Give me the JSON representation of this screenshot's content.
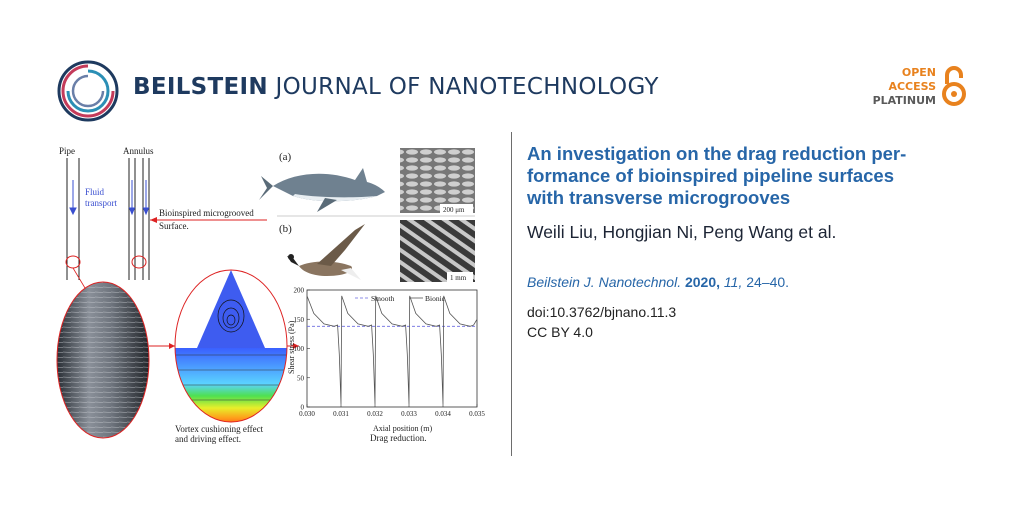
{
  "header": {
    "journal_bold": "BEILSTEIN",
    "journal_rest": " JOURNAL OF NANOTECHNOLOGY",
    "open_access": [
      "OPEN",
      "ACCESS",
      "PLATINUM"
    ]
  },
  "article": {
    "title_lines": [
      "An investigation on the drag reduction per-",
      "formance of bioinspired pipeline surfaces",
      "with transverse microgrooves"
    ],
    "authors": "Weili Liu, Hongjian Ni, Peng Wang et al.",
    "journal_abbr": "Beilstein J. Nanotechnol.",
    "year": "2020,",
    "volume": "11,",
    "pages": "24–40.",
    "doi": "doi:10.3762/bjnano.11.3",
    "license": "CC BY 4.0"
  },
  "figure": {
    "labels": {
      "pipe": "Pipe",
      "annulus": "Annulus",
      "fluid": "Fluid",
      "transport": "transport",
      "panel_a": "(a)",
      "panel_b": "(b)",
      "scale_a": "200 μm",
      "scale_b": "1 mm",
      "microgroove_1": "Bioinspired microgrooved",
      "microgroove_2": "Surface.",
      "vortex_1": "Vortex cushioning effect",
      "vortex_2": "and driving effect.",
      "drag": "Drag reduction."
    }
  },
  "chart_data": {
    "type": "line",
    "xlabel": "Axial position (m)",
    "ylabel": "Shear stress (Pa)",
    "xlim": [
      0.03,
      0.035
    ],
    "ylim": [
      0,
      200
    ],
    "x_ticks": [
      "0.030",
      "0.031",
      "0.032",
      "0.033",
      "0.034",
      "0.035"
    ],
    "y_ticks": [
      "0",
      "50",
      "100",
      "150",
      "200"
    ],
    "legend_position": "top",
    "series": [
      {
        "name": "Smooth",
        "style": "dashed",
        "color": "#6a6adf",
        "x": [
          0.03,
          0.035
        ],
        "y": [
          138,
          138
        ]
      },
      {
        "name": "Bionic",
        "style": "solid",
        "color": "#555555",
        "x": [
          0.03,
          0.0302,
          0.0305,
          0.0308,
          0.0309,
          0.03095,
          0.031,
          0.03102,
          0.0312,
          0.0315,
          0.0318,
          0.0319,
          0.03195,
          0.032,
          0.03202,
          0.0322,
          0.0325,
          0.0328,
          0.0329,
          0.03295,
          0.033,
          0.03302,
          0.0332,
          0.0335,
          0.0338,
          0.0339,
          0.03395,
          0.034,
          0.03402,
          0.0342,
          0.0345,
          0.0348,
          0.0349,
          0.035
        ],
        "y": [
          190,
          160,
          142,
          138,
          140,
          90,
          5,
          190,
          160,
          142,
          138,
          140,
          90,
          5,
          190,
          160,
          142,
          138,
          140,
          90,
          5,
          190,
          160,
          142,
          138,
          140,
          90,
          5,
          190,
          160,
          142,
          138,
          140,
          150
        ]
      }
    ]
  },
  "colors": {
    "journal_blue": "#1e3a5f",
    "title_blue": "#2766a8",
    "open_access_orange": "#e8821e"
  }
}
